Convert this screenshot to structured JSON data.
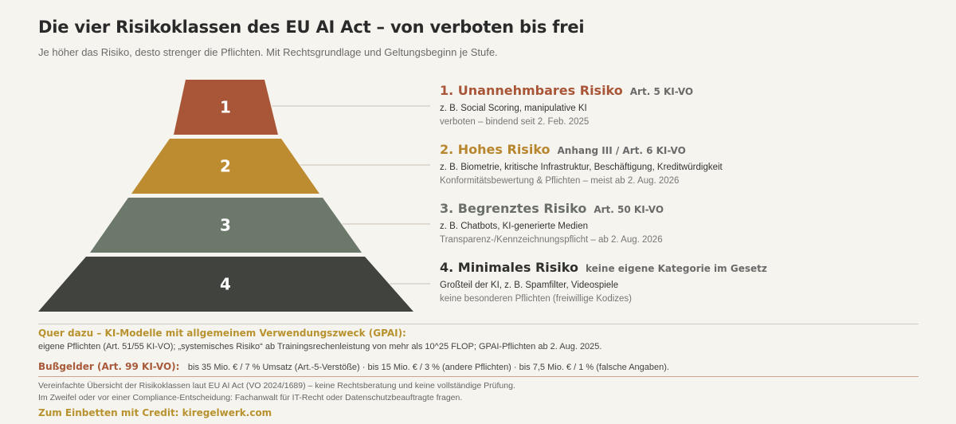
{
  "header": {
    "title": "Die vier Risikoklassen des EU AI Act – von verboten bis frei",
    "subtitle": "Je höher das Risiko, desto strenger die Pflichten. Mit Rechtsgrundlage und Geltungsbeginn je Stufe."
  },
  "tiers": [
    {
      "number": "1",
      "title": "1. Unannehmbares Risiko",
      "law": "Art. 5 KI-VO",
      "example": "z. B. Social Scoring, manipulative KI",
      "status": "verboten – bindend seit 2. Feb. 2025",
      "color": "#a95638",
      "title_color": "#a95638"
    },
    {
      "number": "2",
      "title": "2. Hohes Risiko",
      "law": "Anhang III / Art. 6 KI-VO",
      "example": "z. B. Biometrie, kritische Infrastruktur, Beschäftigung, Kreditwürdigkeit",
      "status": "Konformitätsbewertung & Pflichten – meist ab 2. Aug. 2026",
      "color": "#bd8b30",
      "title_color": "#b8862e"
    },
    {
      "number": "3",
      "title": "3. Begrenztes Risiko",
      "law": "Art. 50 KI-VO",
      "example": "z. B. Chatbots, KI-generierte Medien",
      "status": "Transparenz-/Kennzeichnungspflicht – ab 2. Aug. 2026",
      "color": "#6b786a",
      "title_color": "#6b6f6a"
    },
    {
      "number": "4",
      "title": "4. Minimales Risiko",
      "law": "keine eigene Kategorie im Gesetz",
      "example": "Großteil der KI, z. B. Spamfilter, Videospiele",
      "status": "keine besonderen Pflichten (freiwillige Kodizes)",
      "color": "#41433f",
      "title_color": "#2f302d"
    }
  ],
  "gpai": {
    "title": "Quer dazu – KI-Modelle mit allgemeinem Verwendungszweck (GPAI):",
    "text": "eigene Pflichten (Art. 51/55 KI-VO); „systemisches Risiko“ ab Trainingsrechenleistung von mehr als 10^25 FLOP; GPAI-Pflichten ab 2. Aug. 2025."
  },
  "fines": {
    "label": "Bußgelder (Art. 99 KI-VO):",
    "text": "bis 35 Mio. € / 7 % Umsatz (Art.-5-Verstöße) · bis 15 Mio. € / 3 % (andere Pflichten) · bis 7,5 Mio. € / 1 % (falsche Angaben)."
  },
  "disclaimer": {
    "line1": "Vereinfachte Übersicht der Risikoklassen laut EU AI Act (VO 2024/1689) – keine Rechtsberatung und keine vollständige Prüfung.",
    "line2": "Im Zweifel oder vor einer Compliance-Entscheidung: Fachanwalt für IT-Recht oder Datenschutzbeauftragte fragen."
  },
  "credit": "Zum Einbetten mit Credit: kiregelwerk.com",
  "colors": {
    "background": "#f6f4ee",
    "accent_gold": "#b8922e",
    "accent_rust": "#a85a3a"
  }
}
